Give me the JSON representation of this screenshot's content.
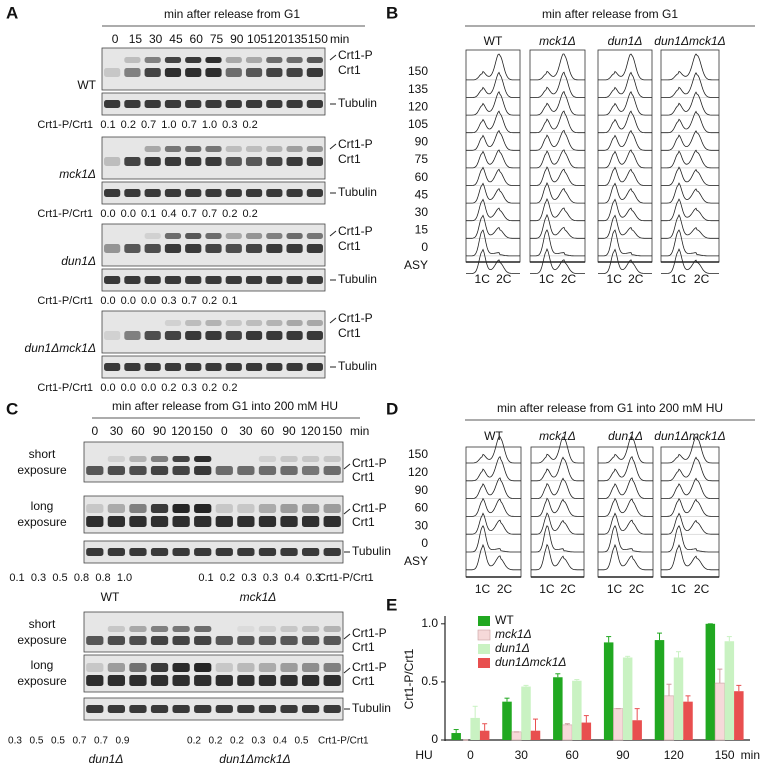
{
  "panels": {
    "A": {
      "letter": "A",
      "header": "min after release from G1",
      "lanes": [
        "0",
        "15",
        "30",
        "45",
        "60",
        "75",
        "90",
        "105",
        "120",
        "135",
        "150"
      ],
      "unit": "min",
      "band_labels": {
        "upper": "Crt1-P",
        "lower": "Crt1",
        "loading": "Tubulin"
      },
      "ratio_label": "Crt1-P/Crt1",
      "blocks": [
        {
          "strain": "WT",
          "ratios": [
            "0.1",
            "0.2",
            "0.7",
            "1.0",
            "0.7",
            "1.0",
            "0.3",
            "0.2"
          ]
        },
        {
          "strain": "mck1Δ",
          "ratios": [
            "0.0",
            "0.0",
            "0.1",
            "0.4",
            "0.7",
            "0.7",
            "0.2",
            "0.2"
          ]
        },
        {
          "strain": "dun1Δ",
          "ratios": [
            "0.0",
            "0.0",
            "0.0",
            "0.3",
            "0.7",
            "0.2",
            "0.1"
          ]
        },
        {
          "strain": "dun1Δmck1Δ",
          "ratios": [
            "0.0",
            "0.0",
            "0.0",
            "0.2",
            "0.3",
            "0.2",
            "0.2"
          ]
        }
      ]
    },
    "B": {
      "letter": "B",
      "header": "min after release from G1",
      "strains": [
        "WT",
        "mck1Δ",
        "dun1Δ",
        "dun1Δmck1Δ"
      ],
      "rows": [
        "150",
        "135",
        "120",
        "105",
        "90",
        "75",
        "60",
        "45",
        "30",
        "15",
        "0",
        "ASY"
      ],
      "dna": [
        "1C",
        "2C"
      ]
    },
    "C": {
      "letter": "C",
      "header": "min after release from G1 into 200 mM HU",
      "lanes": [
        "0",
        "30",
        "60",
        "90",
        "120",
        "150"
      ],
      "unit": "min",
      "exposures": {
        "short": [
          "short",
          "exposure"
        ],
        "long": [
          "long",
          "exposure"
        ]
      },
      "band_labels": {
        "upper": "Crt1-P",
        "lower": "Crt1",
        "loading": "Tubulin"
      },
      "ratio_label": "Crt1-P/Crt1",
      "top": {
        "strains": [
          "WT",
          "mck1Δ"
        ],
        "ratios": [
          [
            "0.1",
            "0.3",
            "0.5",
            "0.8",
            "0.8",
            "1.0"
          ],
          [
            "0.1",
            "0.2",
            "0.3",
            "0.3",
            "0.4",
            "0.3"
          ]
        ]
      },
      "bottom": {
        "strains": [
          "dun1Δ",
          "dun1Δmck1Δ"
        ],
        "ratios": [
          [
            "0.3",
            "0.5",
            "0.5",
            "0.7",
            "0.7",
            "0.9"
          ],
          [
            "0.2",
            "0.2",
            "0.2",
            "0.3",
            "0.4",
            "0.5"
          ]
        ]
      }
    },
    "D": {
      "letter": "D",
      "header": "min after release from G1 into 200 mM HU",
      "strains": [
        "WT",
        "mck1Δ",
        "dun1Δ",
        "dun1Δmck1Δ"
      ],
      "rows": [
        "150",
        "120",
        "90",
        "60",
        "30",
        "0",
        "ASY"
      ],
      "dna": [
        "1C",
        "2C"
      ]
    }
  },
  "chart_data": {
    "type": "bar",
    "letter": "E",
    "ylabel": "Crt1-P/Crt1",
    "xlabel": "HU",
    "xunit": "min",
    "categories": [
      "0",
      "30",
      "60",
      "90",
      "120",
      "150"
    ],
    "ylim": [
      0,
      1.05
    ],
    "yticks": [
      0,
      0.5,
      {
        "value": 1,
        "label": "1.0"
      }
    ],
    "grid": false,
    "series": [
      {
        "name": "WT",
        "color": "#21a821",
        "values": [
          0.06,
          0.33,
          0.54,
          0.84,
          0.86,
          1.0
        ],
        "errors": [
          0.03,
          0.03,
          0.03,
          0.05,
          0.06,
          0.0
        ]
      },
      {
        "name": "mck1Δ",
        "color": "#f6d9d9",
        "values": [
          0.0,
          0.07,
          0.13,
          0.27,
          0.38,
          0.49
        ],
        "errors": [
          0.0,
          0.0,
          0.01,
          0.0,
          0.1,
          0.12
        ]
      },
      {
        "name": "dun1Δ",
        "color": "#c9f2c2",
        "values": [
          0.19,
          0.46,
          0.51,
          0.71,
          0.71,
          0.85
        ],
        "errors": [
          0.1,
          0.01,
          0.01,
          0.01,
          0.05,
          0.04
        ]
      },
      {
        "name": "dun1Δmck1Δ",
        "color": "#e84f4f",
        "values": [
          0.08,
          0.08,
          0.15,
          0.17,
          0.33,
          0.42
        ],
        "errors": [
          0.06,
          0.1,
          0.06,
          0.1,
          0.05,
          0.05
        ]
      }
    ]
  }
}
